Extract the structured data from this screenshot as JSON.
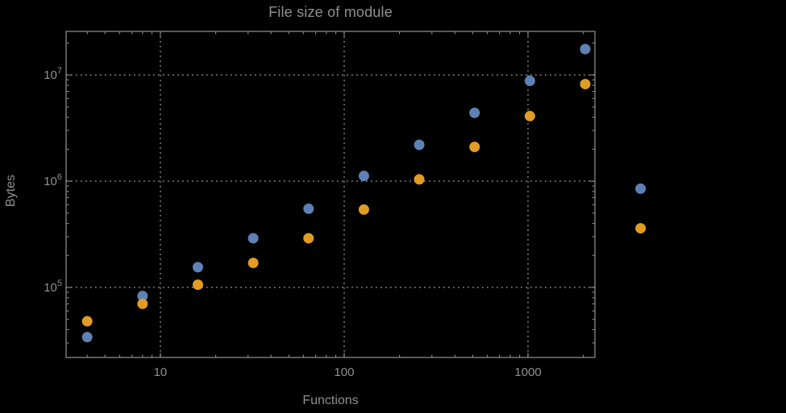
{
  "chart": {
    "title": "File size of module",
    "xlabel": "Functions",
    "ylabel": "Bytes"
  },
  "colors": {
    "background": "#000000",
    "text": "#8f8f8f",
    "frame": "#878787",
    "grid": "#7a7a7a",
    "series1": "#5e81b5",
    "series2": "#e19c24"
  },
  "chart_data": {
    "type": "scatter",
    "title": "File size of module",
    "xlabel": "Functions",
    "ylabel": "Bytes",
    "xscale": "log",
    "yscale": "log",
    "xlim": [
      3.07,
      2313
    ],
    "ylim": [
      21900,
      25700000
    ],
    "grid": "dotted major decade lines",
    "x_ticks": [
      10,
      100,
      1000
    ],
    "x_tick_labels": [
      "10",
      "100",
      "1000"
    ],
    "y_ticks": [
      100000,
      1000000,
      10000000
    ],
    "y_tick_labels": [
      "10^5",
      "10^6",
      "10^7"
    ],
    "x": [
      4,
      8,
      16,
      32,
      64,
      128,
      256,
      512,
      1024,
      2048,
      4096
    ],
    "series": [
      {
        "name": "series-blue",
        "color": "#5e81b5",
        "values": [
          34000,
          83000,
          155000,
          290000,
          550000,
          1120000,
          2200000,
          4400000,
          8800000,
          17500000,
          850000
        ]
      },
      {
        "name": "series-orange",
        "color": "#e19c24",
        "values": [
          48000,
          70000,
          106000,
          170000,
          290000,
          540000,
          1040000,
          2100000,
          4100000,
          8200000,
          360000
        ]
      }
    ]
  }
}
